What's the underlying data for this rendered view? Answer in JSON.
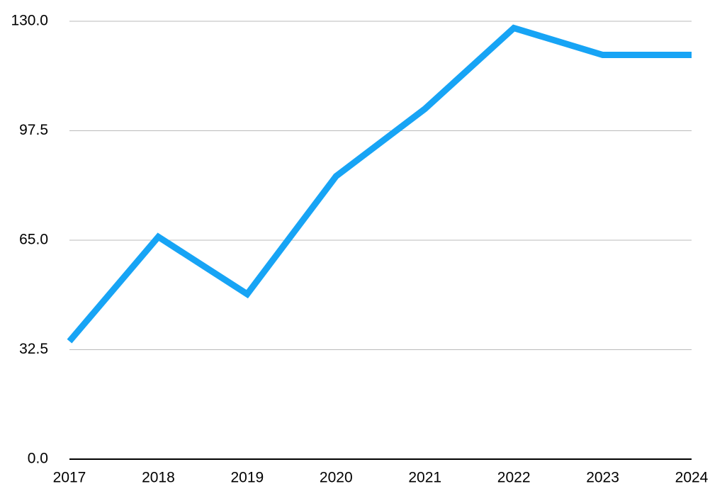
{
  "chart_data": {
    "type": "line",
    "categories": [
      "2017",
      "2018",
      "2019",
      "2020",
      "2021",
      "2022",
      "2023",
      "2024"
    ],
    "series": [
      {
        "color": "#17a4f5",
        "values": [
          35,
          66,
          49,
          84,
          104,
          128,
          120,
          120
        ]
      }
    ],
    "ylim": [
      0,
      130
    ],
    "yticks": [
      {
        "value": 0,
        "label": "0.0"
      },
      32.5,
      {
        "value": 65,
        "label": "65.0"
      },
      97.5,
      {
        "value": 130,
        "label": "130.0"
      }
    ],
    "grid": true
  }
}
